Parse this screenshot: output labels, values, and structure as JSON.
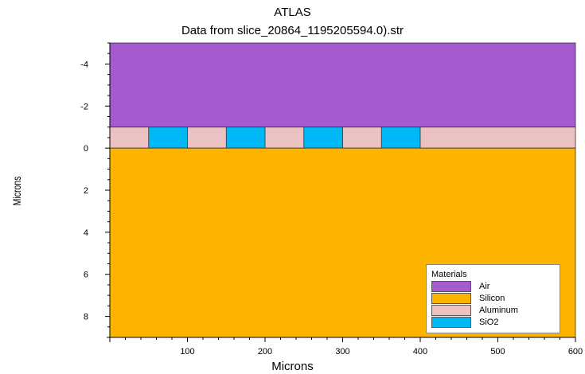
{
  "title": "ATLAS",
  "subtitle": "Data from slice_20864_1195205594.0).str",
  "chart_data": {
    "type": "structure-cross-section",
    "xlabel": "Microns",
    "ylabel": "Microns",
    "xlim": [
      0,
      600
    ],
    "ylim": [
      -5,
      9
    ],
    "y_inverted": true,
    "x_ticks": [
      100,
      200,
      300,
      400,
      500,
      600
    ],
    "y_ticks": [
      -4,
      -2,
      0,
      2,
      4,
      6,
      8
    ],
    "regions": [
      {
        "material": "Air",
        "x": [
          0,
          600
        ],
        "y": [
          -5,
          -1
        ]
      },
      {
        "material": "Aluminum",
        "x": [
          0,
          600
        ],
        "y": [
          -1,
          0
        ]
      },
      {
        "material": "SiO2",
        "x": [
          50,
          100
        ],
        "y": [
          -1,
          0
        ]
      },
      {
        "material": "SiO2",
        "x": [
          150,
          200
        ],
        "y": [
          -1,
          0
        ]
      },
      {
        "material": "SiO2",
        "x": [
          250,
          300
        ],
        "y": [
          -1,
          0
        ]
      },
      {
        "material": "SiO2",
        "x": [
          350,
          400
        ],
        "y": [
          -1,
          0
        ]
      },
      {
        "material": "Silicon",
        "x": [
          0,
          600
        ],
        "y": [
          0,
          9
        ]
      }
    ],
    "legend": {
      "title": "Materials",
      "position": "bottom-right",
      "items": [
        {
          "name": "Air",
          "color": "#a45bd0"
        },
        {
          "name": "Silicon",
          "color": "#fcb400"
        },
        {
          "name": "Aluminum",
          "color": "#ebc1c1"
        },
        {
          "name": "SiO2",
          "color": "#00b8f5"
        }
      ]
    }
  }
}
